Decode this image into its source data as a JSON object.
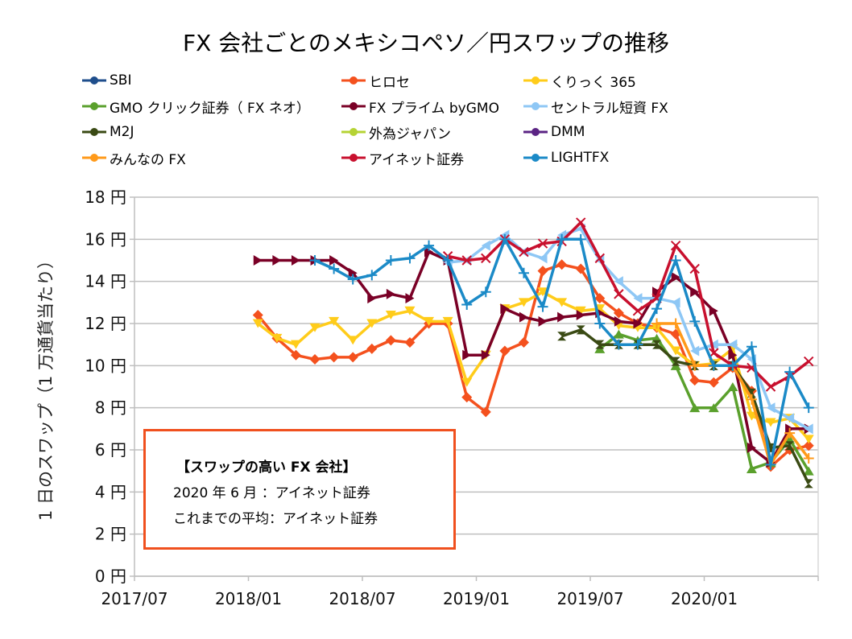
{
  "chart_data": {
    "type": "line",
    "title": "FX 会社ごとのメキシコペソ／円スワップの推移",
    "xlabel": "",
    "ylabel": "1 日のスワップ（1 万通貨当たり）",
    "ylim": [
      0,
      18
    ],
    "y_ticks": [
      "0 円",
      "2 円",
      "4 円",
      "6 円",
      "8 円",
      "10 円",
      "12 円",
      "14 円",
      "16 円",
      "18 円"
    ],
    "x_ticks": [
      "2017/07",
      "2018/01",
      "2018/07",
      "2019/01",
      "2019/07",
      "2020/01"
    ],
    "x_range_months": [
      "2017/07",
      "2020/07"
    ],
    "grid": true,
    "legend_position": "top",
    "x": [
      "2018/01",
      "2018/02",
      "2018/03",
      "2018/04",
      "2018/05",
      "2018/06",
      "2018/07",
      "2018/08",
      "2018/09",
      "2018/10",
      "2018/11",
      "2018/12",
      "2019/01",
      "2019/02",
      "2019/03",
      "2019/04",
      "2019/05",
      "2019/06",
      "2019/07",
      "2019/08",
      "2019/09",
      "2019/10",
      "2019/11",
      "2019/12",
      "2020/01",
      "2020/02",
      "2020/03",
      "2020/04",
      "2020/05",
      "2020/06"
    ],
    "series": [
      {
        "name": "SBI",
        "color": "#1f4e8c",
        "marker": "square",
        "values": [
          null,
          null,
          null,
          null,
          null,
          null,
          null,
          null,
          null,
          null,
          null,
          null,
          null,
          null,
          null,
          null,
          null,
          null,
          null,
          null,
          null,
          null,
          null,
          null,
          null,
          null,
          null,
          null,
          null,
          null
        ]
      },
      {
        "name": "ヒロセ",
        "color": "#f4511e",
        "marker": "diamond",
        "values": [
          12.4,
          11.3,
          10.5,
          10.3,
          10.4,
          10.4,
          10.8,
          11.2,
          11.1,
          12.0,
          12.0,
          8.5,
          7.8,
          10.7,
          11.1,
          14.5,
          14.8,
          14.6,
          13.2,
          12.5,
          12.0,
          11.8,
          11.5,
          9.3,
          9.2,
          9.9,
          8.8,
          5.2,
          6.0,
          6.2
        ]
      },
      {
        "name": "くりっく 365",
        "color": "#ffcc1a",
        "marker": "triangle-down",
        "values": [
          12.0,
          11.3,
          11.0,
          11.8,
          12.1,
          11.2,
          12.0,
          12.4,
          12.6,
          12.1,
          12.1,
          9.2,
          10.5,
          12.7,
          13.0,
          13.5,
          13.0,
          12.6,
          12.7,
          11.9,
          11.8,
          11.8,
          10.7,
          10.0,
          10.1,
          10.8,
          7.6,
          7.3,
          7.5,
          6.5
        ]
      },
      {
        "name": "GMO クリック証券（ FX ネオ）",
        "color": "#5aa02c",
        "marker": "triangle-up",
        "values": [
          null,
          null,
          null,
          null,
          null,
          null,
          null,
          null,
          null,
          null,
          null,
          null,
          null,
          null,
          null,
          null,
          null,
          null,
          10.8,
          11.5,
          11.2,
          11.3,
          10.0,
          8.0,
          8.0,
          9.0,
          5.1,
          5.4,
          6.5,
          5.0
        ]
      },
      {
        "name": "FX プライム byGMO",
        "color": "#7a0026",
        "marker": "triangle-right",
        "values": [
          15.0,
          15.0,
          15.0,
          15.0,
          15.0,
          14.4,
          13.2,
          13.4,
          13.2,
          15.4,
          15.0,
          10.5,
          10.5,
          12.7,
          12.3,
          12.1,
          12.3,
          12.4,
          12.5,
          12.1,
          12.0,
          13.5,
          14.2,
          13.5,
          12.6,
          10.5,
          6.1,
          5.4,
          7.0,
          7.0
        ]
      },
      {
        "name": "セントラル短資 FX",
        "color": "#8ec7f5",
        "marker": "triangle-left",
        "values": [
          null,
          null,
          null,
          null,
          null,
          null,
          null,
          null,
          null,
          null,
          14.9,
          15.0,
          15.7,
          16.2,
          15.4,
          15.1,
          16.2,
          16.5,
          15.0,
          14.0,
          13.2,
          13.2,
          13.0,
          10.7,
          11.0,
          11.0,
          10.3,
          8.0,
          7.5,
          7.0
        ]
      },
      {
        "name": "M2J",
        "color": "#3a4a14",
        "marker": "bowtie",
        "values": [
          null,
          null,
          null,
          null,
          null,
          null,
          null,
          null,
          null,
          null,
          null,
          null,
          null,
          null,
          null,
          null,
          11.4,
          11.7,
          11.0,
          11.0,
          11.0,
          11.0,
          10.2,
          10.0,
          10.0,
          10.0,
          8.7,
          6.1,
          6.2,
          4.4
        ]
      },
      {
        "name": "外為ジャパン",
        "color": "#b5d334",
        "marker": "hourglass",
        "values": [
          null,
          null,
          null,
          null,
          null,
          null,
          null,
          null,
          null,
          null,
          null,
          null,
          null,
          null,
          null,
          null,
          null,
          null,
          null,
          null,
          null,
          null,
          null,
          null,
          null,
          null,
          null,
          null,
          null,
          null
        ]
      },
      {
        "name": "DMM",
        "color": "#5b2484",
        "marker": "circle",
        "values": [
          null,
          null,
          null,
          null,
          null,
          null,
          null,
          null,
          null,
          null,
          null,
          null,
          null,
          null,
          null,
          null,
          null,
          null,
          null,
          null,
          null,
          null,
          null,
          null,
          null,
          null,
          null,
          null,
          null,
          null
        ]
      },
      {
        "name": "みんなの FX",
        "color": "#ff9a1a",
        "marker": "plus",
        "values": [
          null,
          null,
          null,
          null,
          null,
          null,
          null,
          null,
          null,
          null,
          null,
          null,
          null,
          null,
          null,
          null,
          null,
          null,
          null,
          null,
          null,
          12.0,
          12.0,
          10.0,
          10.0,
          10.0,
          8.4,
          5.3,
          6.8,
          5.6
        ]
      },
      {
        "name": "アイネット証券",
        "color": "#c8102e",
        "marker": "x",
        "values": [
          null,
          null,
          null,
          null,
          null,
          null,
          null,
          null,
          null,
          null,
          15.2,
          15.0,
          15.1,
          16.0,
          15.4,
          15.8,
          15.9,
          16.8,
          15.1,
          13.4,
          12.6,
          13.2,
          15.7,
          14.6,
          10.6,
          10.0,
          9.9,
          9.0,
          9.5,
          10.2
        ]
      },
      {
        "name": "LIGHTFX",
        "color": "#1b8ac7",
        "marker": "plus",
        "values": [
          null,
          null,
          null,
          15.0,
          14.6,
          14.1,
          14.3,
          15.0,
          15.1,
          15.7,
          15.0,
          12.9,
          13.5,
          16.0,
          14.4,
          12.8,
          16.0,
          16.0,
          12.0,
          11.0,
          11.0,
          12.7,
          15.0,
          12.1,
          10.0,
          10.0,
          10.9,
          5.3,
          9.7,
          8.0
        ]
      }
    ]
  },
  "legend": [
    {
      "label": "SBI"
    },
    {
      "label": "ヒロセ"
    },
    {
      "label": "くりっく 365"
    },
    {
      "label": "GMO クリック証券（ FX ネオ）"
    },
    {
      "label": "FX プライム byGMO"
    },
    {
      "label": "セントラル短資 FX"
    },
    {
      "label": "M2J"
    },
    {
      "label": "外為ジャパン"
    },
    {
      "label": "DMM"
    },
    {
      "label": "みんなの FX"
    },
    {
      "label": "アイネット証券"
    },
    {
      "label": "LIGHTFX"
    }
  ],
  "callout": {
    "heading": "【スワップの高い FX 会社】",
    "line1": "2020 年 6 月 ：アイネット証券",
    "line2": "これまでの平均：アイネット証券",
    "border_color": "#f0501e"
  }
}
